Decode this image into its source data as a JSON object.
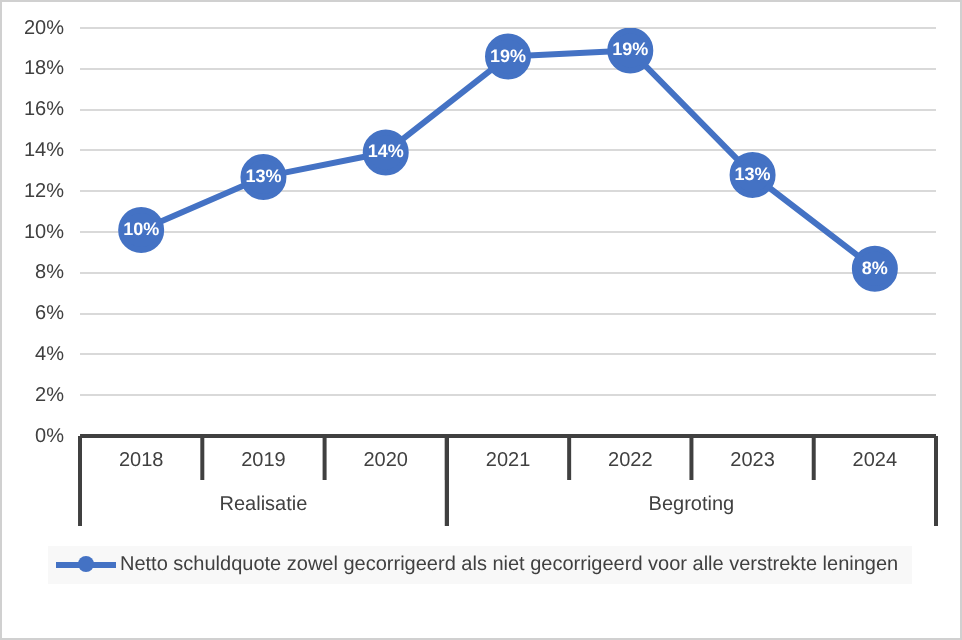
{
  "chart_data": {
    "type": "line",
    "categories": [
      "2018",
      "2019",
      "2020",
      "2021",
      "2022",
      "2023",
      "2024"
    ],
    "series": [
      {
        "name": "Netto schuldquote zowel gecorrigeerd als niet gecorrigeerd voor alle verstrekte leningen",
        "color": "#4472c4",
        "values": [
          10.1,
          12.7,
          13.9,
          18.6,
          18.9,
          12.8,
          8.2
        ],
        "value_labels": [
          "10%",
          "13%",
          "14%",
          "19%",
          "19%",
          "13%",
          "8%"
        ]
      }
    ],
    "ylim": [
      0,
      20
    ],
    "yticks": [
      {
        "value": 0,
        "label": "0%"
      },
      {
        "value": 2,
        "label": "2%"
      },
      {
        "value": 4,
        "label": "4%"
      },
      {
        "value": 6,
        "label": "6%"
      },
      {
        "value": 8,
        "label": "8%"
      },
      {
        "value": 10,
        "label": "10%"
      },
      {
        "value": 12,
        "label": "12%"
      },
      {
        "value": 14,
        "label": "14%"
      },
      {
        "value": 16,
        "label": "16%"
      },
      {
        "value": 18,
        "label": "18%"
      },
      {
        "value": 20,
        "label": "20%"
      }
    ],
    "annotations": [
      "Realisatie",
      "Begroting"
    ],
    "grid": "y",
    "legend": "bottom",
    "marker": "circle",
    "line_style": "solid"
  }
}
